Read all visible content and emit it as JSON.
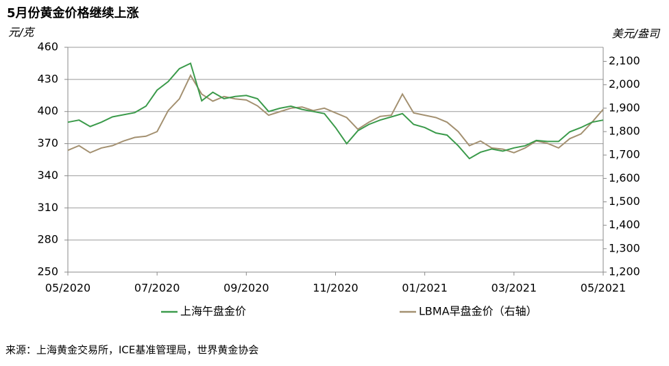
{
  "chart_data": {
    "type": "line",
    "title": "5月份黄金价格继续上涨",
    "y_label": "元/克",
    "y2_label": "美元/盎司",
    "source": "来源：上海黄金交易所，ICE基准管理局，世界黄金协会",
    "categories": [
      "05/2020",
      null,
      null,
      null,
      null,
      null,
      null,
      null,
      "07/2020",
      null,
      null,
      null,
      null,
      null,
      null,
      null,
      "09/2020",
      null,
      null,
      null,
      null,
      null,
      null,
      null,
      "11/2020",
      null,
      null,
      null,
      null,
      null,
      null,
      null,
      "01/2021",
      null,
      null,
      null,
      null,
      null,
      null,
      null,
      "03/2021",
      null,
      null,
      null,
      null,
      null,
      null,
      null,
      "05/2021"
    ],
    "series": [
      {
        "name": "上海午盘金价",
        "color": "#3a9a4a",
        "axis": "y",
        "values": [
          390,
          392,
          386,
          390,
          395,
          397,
          399,
          405,
          420,
          428,
          440,
          445,
          410,
          418,
          412,
          414,
          415,
          412,
          400,
          403,
          405,
          402,
          400,
          398,
          385,
          370,
          382,
          388,
          392,
          395,
          398,
          388,
          385,
          380,
          378,
          368,
          356,
          362,
          365,
          363,
          366,
          368,
          373,
          372,
          372,
          381,
          385,
          390,
          392
        ]
      },
      {
        "name": "LBMA早盘金价（右轴）",
        "color": "#a39070",
        "axis": "y2",
        "values": [
          1720,
          1740,
          1710,
          1730,
          1740,
          1760,
          1775,
          1780,
          1800,
          1890,
          1940,
          2040,
          1960,
          1930,
          1950,
          1940,
          1935,
          1910,
          1870,
          1885,
          1900,
          1905,
          1890,
          1900,
          1880,
          1860,
          1810,
          1840,
          1865,
          1870,
          1960,
          1880,
          1870,
          1860,
          1840,
          1800,
          1740,
          1760,
          1730,
          1725,
          1710,
          1730,
          1760,
          1750,
          1730,
          1770,
          1790,
          1840,
          1895
        ]
      }
    ],
    "ylim": [
      250,
      460
    ],
    "yticks": [
      250,
      280,
      310,
      340,
      370,
      400,
      430,
      460
    ],
    "y2lim": [
      1200,
      2160
    ],
    "y2ticks": [
      {
        "value": 1200,
        "label": "1,200"
      },
      {
        "value": 1300,
        "label": "1,300"
      },
      {
        "value": 1400,
        "label": "1,400"
      },
      {
        "value": 1500,
        "label": "1,500"
      },
      {
        "value": 1600,
        "label": "1,600"
      },
      {
        "value": 1700,
        "label": "1,700"
      },
      {
        "value": 1800,
        "label": "1,800"
      },
      {
        "value": 1900,
        "label": "1,900"
      },
      {
        "value": 2000,
        "label": "2,000"
      },
      {
        "value": 2100,
        "label": "2,100"
      }
    ],
    "grid": true
  }
}
